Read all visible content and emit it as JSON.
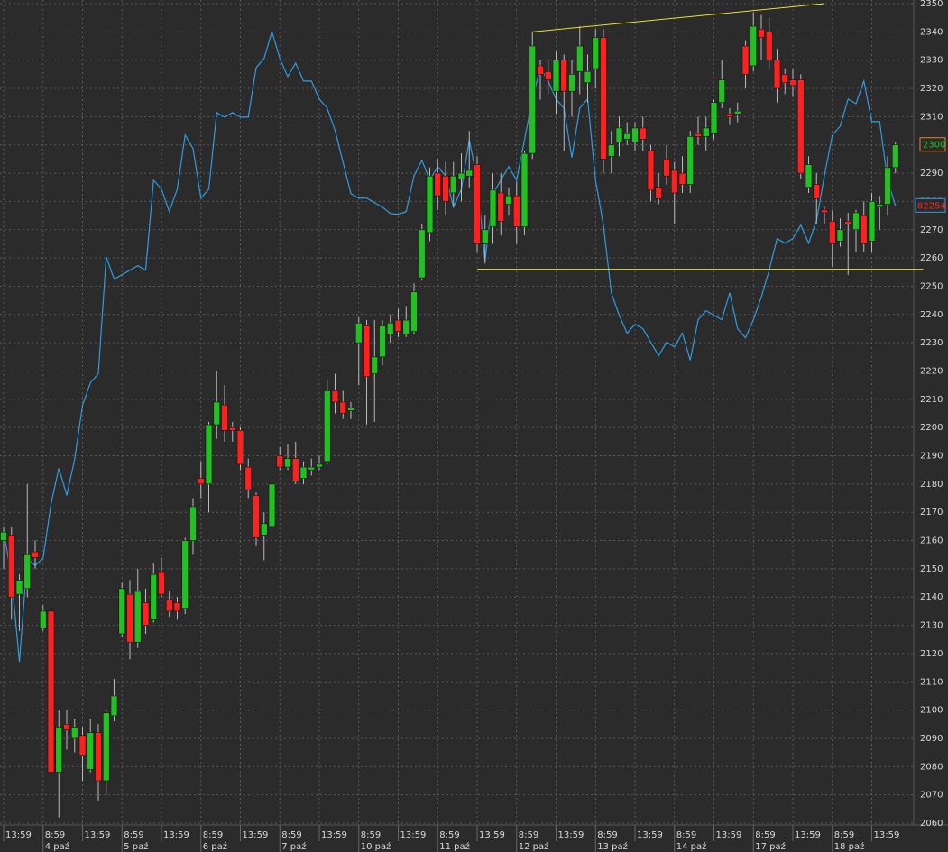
{
  "chart_data": {
    "type": "candlestick",
    "ylim": [
      2060,
      2350
    ],
    "yticks": [
      2060,
      2070,
      2080,
      2090,
      2100,
      2110,
      2120,
      2130,
      2140,
      2150,
      2160,
      2170,
      2180,
      2190,
      2200,
      2210,
      2220,
      2230,
      2240,
      2250,
      2260,
      2270,
      2280,
      2290,
      2300,
      2310,
      2320,
      2330,
      2340,
      2350
    ],
    "xlim": [
      -0.5,
      115.5
    ],
    "xticks": [
      {
        "value": 0,
        "label": "13:59"
      },
      {
        "value": 5,
        "label": "8:59"
      },
      {
        "value": 10,
        "label": "13:59"
      },
      {
        "value": 15,
        "label": "8:59"
      },
      {
        "value": 20,
        "label": "13:59"
      },
      {
        "value": 25,
        "label": "8:59"
      },
      {
        "value": 30,
        "label": "13:59"
      },
      {
        "value": 35,
        "label": "8:59"
      },
      {
        "value": 40,
        "label": "13:59"
      },
      {
        "value": 45,
        "label": "8:59"
      },
      {
        "value": 50,
        "label": "13:59"
      },
      {
        "value": 55,
        "label": "8:59"
      },
      {
        "value": 60,
        "label": "13:59"
      },
      {
        "value": 65,
        "label": "8:59"
      },
      {
        "value": 70,
        "label": "13:59"
      },
      {
        "value": 75,
        "label": "8:59"
      },
      {
        "value": 80,
        "label": "13:59"
      },
      {
        "value": 85,
        "label": "8:59"
      },
      {
        "value": 90,
        "label": "13:59"
      },
      {
        "value": 95,
        "label": "8:59"
      },
      {
        "value": 100,
        "label": "13:59"
      },
      {
        "value": 105,
        "label": "8:59"
      },
      {
        "value": 110,
        "label": "13:59"
      }
    ],
    "date_ticks": [
      {
        "value": 5,
        "label": "4 paź"
      },
      {
        "value": 15,
        "label": "5 paź"
      },
      {
        "value": 25,
        "label": "6 paź"
      },
      {
        "value": 35,
        "label": "7 paź"
      },
      {
        "value": 45,
        "label": "10 paź"
      },
      {
        "value": 55,
        "label": "11 paź"
      },
      {
        "value": 65,
        "label": "12 paź"
      },
      {
        "value": 75,
        "label": "13 paź"
      },
      {
        "value": 85,
        "label": "14 paź"
      },
      {
        "value": 95,
        "label": "17 paź"
      },
      {
        "value": 105,
        "label": "18 paź"
      }
    ],
    "grid": true,
    "up_color": "#22c022",
    "down_color": "#ff2020",
    "open": [
      2160,
      2162,
      2141,
      2143,
      2156,
      2129,
      2135,
      2078,
      2095,
      2090,
      2091,
      2079,
      2092,
      2075,
      2098,
      2127,
      2141,
      2124,
      2138,
      2132,
      2149,
      2139,
      2138,
      2136,
      2160,
      2182,
      2180,
      2201,
      2208,
      2200,
      2199,
      2186,
      2176,
      2162,
      2165,
      2190,
      2186,
      2189,
      2182,
      2185,
      2186,
      2188,
      2213,
      2209,
      2206,
      2230,
      2236,
      2219,
      2225,
      2233,
      2238,
      2233,
      2234,
      2253,
      2269,
      2290,
      2289,
      2283,
      2288,
      2289,
      2293,
      2265,
      2271,
      2283,
      2279,
      2282,
      2271,
      2297,
      2328,
      2326,
      2319,
      2330,
      2319,
      2326,
      2322,
      2327,
      2338,
      2296,
      2301,
      2302,
      2301,
      2306,
      2298,
      2285,
      2295,
      2291,
      2290,
      2286,
      2304,
      2303,
      2304,
      2315,
      2311,
      2311,
      2335,
      2328,
      2341,
      2340,
      2330,
      2325,
      2323,
      2323,
      2285,
      2286,
      2277,
      2273,
      2266,
      2273,
      2270,
      2275,
      2266,
      2278,
      2279,
      2292
    ],
    "high": [
      2165,
      2165,
      2148,
      2180,
      2160,
      2137,
      2136,
      2100,
      2100,
      2097,
      2094,
      2097,
      2095,
      2100,
      2111,
      2145,
      2146,
      2150,
      2143,
      2152,
      2154,
      2142,
      2140,
      2161,
      2175,
      2188,
      2202,
      2220,
      2215,
      2202,
      2200,
      2189,
      2177,
      2170,
      2182,
      2193,
      2194,
      2195,
      2188,
      2189,
      2190,
      2217,
      2219,
      2213,
      2209,
      2239,
      2238,
      2238,
      2238,
      2240,
      2242,
      2243,
      2251,
      2272,
      2292,
      2295,
      2294,
      2294,
      2297,
      2305,
      2296,
      2275,
      2290,
      2290,
      2285,
      2287,
      2298,
      2340,
      2330,
      2330,
      2333,
      2332,
      2330,
      2342,
      2332,
      2341,
      2341,
      2305,
      2310,
      2308,
      2308,
      2310,
      2300,
      2290,
      2300,
      2294,
      2296,
      2305,
      2310,
      2310,
      2316,
      2330,
      2313,
      2315,
      2337,
      2347,
      2346,
      2345,
      2334,
      2327,
      2327,
      2325,
      2296,
      2290,
      2278,
      2277,
      2274,
      2276,
      2277,
      2280,
      2283,
      2282,
      2296,
      2301
    ],
    "low": [
      2150,
      2132,
      2128,
      2140,
      2150,
      2128,
      2077,
      2062,
      2086,
      2085,
      2075,
      2078,
      2068,
      2070,
      2096,
      2126,
      2118,
      2122,
      2127,
      2131,
      2140,
      2133,
      2132,
      2134,
      2155,
      2175,
      2170,
      2196,
      2195,
      2195,
      2185,
      2175,
      2158,
      2153,
      2160,
      2185,
      2185,
      2180,
      2180,
      2183,
      2185,
      2187,
      2205,
      2203,
      2203,
      2215,
      2201,
      2202,
      2222,
      2230,
      2232,
      2232,
      2233,
      2252,
      2266,
      2277,
      2275,
      2278,
      2280,
      2285,
      2262,
      2258,
      2265,
      2268,
      2275,
      2265,
      2268,
      2295,
      2316,
      2318,
      2311,
      2298,
      2310,
      2318,
      2315,
      2320,
      2290,
      2290,
      2296,
      2300,
      2298,
      2298,
      2280,
      2279,
      2286,
      2272,
      2283,
      2283,
      2300,
      2298,
      2302,
      2313,
      2307,
      2308,
      2320,
      2326,
      2330,
      2327,
      2315,
      2318,
      2317,
      2288,
      2283,
      2272,
      2272,
      2257,
      2264,
      2254,
      2262,
      2262,
      2262,
      2270,
      2275,
      2290
    ],
    "close": [
      2163,
      2140,
      2146,
      2155,
      2154,
      2135,
      2078,
      2094,
      2093,
      2094,
      2084,
      2092,
      2075,
      2099,
      2105,
      2143,
      2124,
      2142,
      2130,
      2148,
      2141,
      2135,
      2135,
      2160,
      2172,
      2180,
      2201,
      2209,
      2199,
      2199,
      2187,
      2178,
      2161,
      2166,
      2180,
      2186,
      2189,
      2181,
      2186,
      2186,
      2187,
      2213,
      2209,
      2205,
      2207,
      2237,
      2218,
      2225,
      2236,
      2237,
      2234,
      2238,
      2248,
      2270,
      2289,
      2282,
      2280,
      2289,
      2290,
      2291,
      2265,
      2270,
      2284,
      2273,
      2282,
      2271,
      2297,
      2335,
      2325,
      2323,
      2330,
      2319,
      2325,
      2335,
      2326,
      2338,
      2295,
      2300,
      2306,
      2304,
      2306,
      2302,
      2284,
      2281,
      2289,
      2283,
      2286,
      2303,
      2303,
      2306,
      2315,
      2323,
      2310,
      2312,
      2325,
      2342,
      2338,
      2330,
      2320,
      2322,
      2321,
      2290,
      2293,
      2281,
      2276,
      2265,
      2270,
      2272,
      2276,
      2265,
      2280,
      2279,
      2292,
      2300
    ],
    "y2lim": [
      75400,
      84500
    ],
    "line": {
      "color": "#2f9be0",
      "axis": "y2",
      "values": [
        78640,
        78140,
        77190,
        78340,
        78260,
        78340,
        78940,
        79340,
        79040,
        79440,
        80040,
        80290,
        80390,
        81690,
        81440,
        81490,
        81540,
        81590,
        81540,
        82540,
        82440,
        82190,
        82440,
        83040,
        82890,
        82340,
        82440,
        83290,
        83240,
        83290,
        83240,
        83240,
        83790,
        83890,
        84190,
        83890,
        83690,
        83840,
        83640,
        83640,
        83440,
        83340,
        83090,
        82740,
        82390,
        82340,
        82340,
        82290,
        82240,
        82170,
        82160,
        82190,
        82590,
        82760,
        82540,
        82690,
        82590,
        82240,
        82440,
        82990,
        82540,
        81640,
        82390,
        82540,
        82690,
        82540,
        82990,
        83440,
        83790,
        83640,
        83440,
        83340,
        82790,
        83340,
        83440,
        82540,
        82040,
        81290,
        81040,
        80840,
        80940,
        80890,
        80740,
        80590,
        80740,
        80690,
        80840,
        80540,
        80990,
        81090,
        81040,
        80990,
        81290,
        80890,
        80790,
        80990,
        81240,
        81540,
        81890,
        81840,
        81890,
        82040,
        81840,
        82090,
        82590,
        83040,
        83140,
        83440,
        83390,
        83640,
        83190,
        83190,
        82540,
        82254
      ]
    },
    "trendlines": [
      {
        "color": "#e8e030",
        "x": [
          67,
          104
        ],
        "y": [
          2340,
          2350
        ]
      },
      {
        "color": "#e8e030",
        "x": [
          60,
          116.5
        ],
        "y": [
          2256,
          2256
        ]
      }
    ]
  }
}
